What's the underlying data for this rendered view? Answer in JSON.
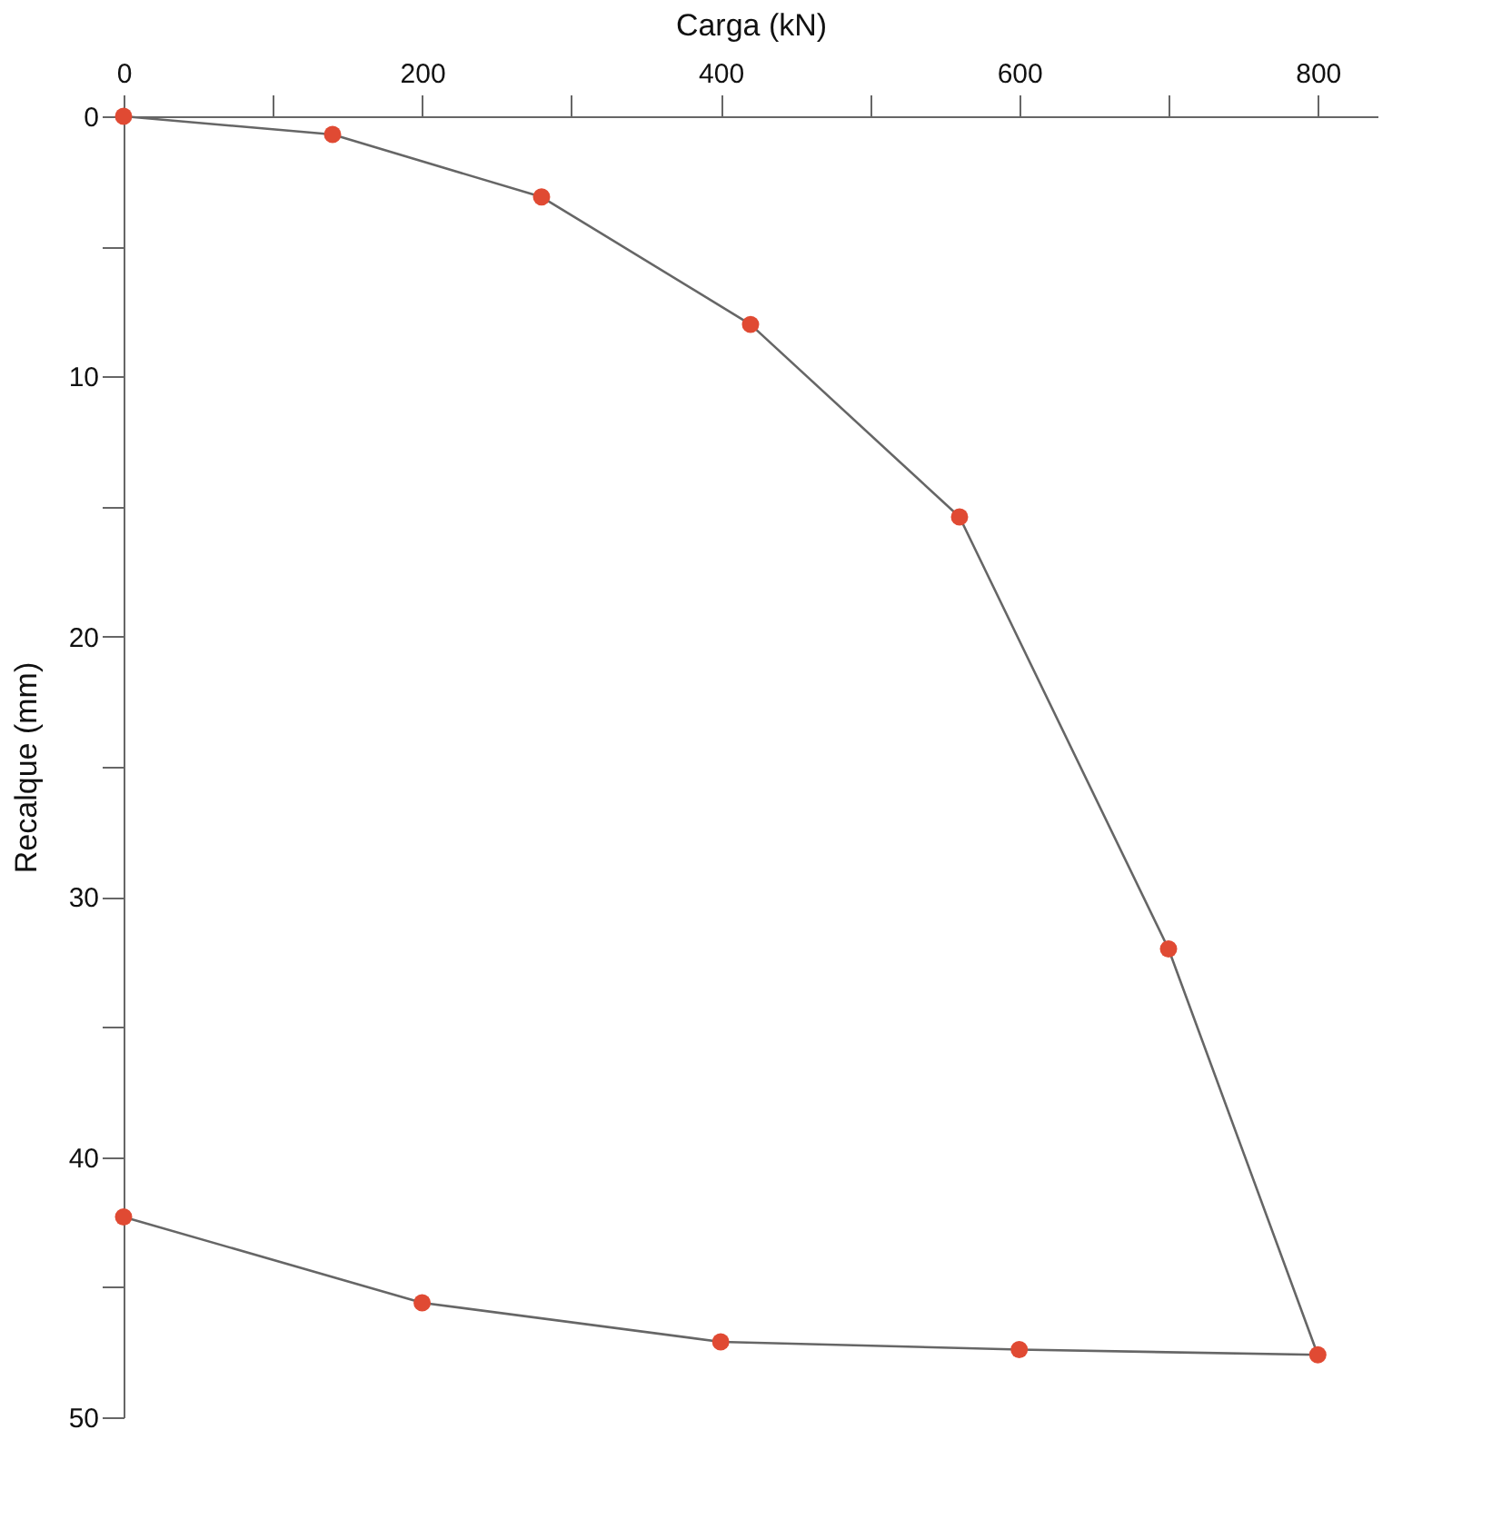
{
  "chart_data": {
    "type": "line",
    "xlabel": "Carga (kN)",
    "ylabel": "Recalque (mm)",
    "x": [
      0,
      140,
      280,
      420,
      560,
      700,
      800,
      600,
      400,
      200,
      0
    ],
    "series": [
      {
        "color": "#e04a33",
        "values": [
          0,
          0.7,
          3.1,
          8.0,
          15.4,
          32.0,
          47.6,
          47.4,
          47.1,
          45.6,
          42.3
        ]
      }
    ],
    "xlim": [
      0,
      840
    ],
    "ylim": [
      50,
      0
    ],
    "xticks": [
      0,
      {
        "value": 100,
        "label": null
      },
      200,
      {
        "value": 300,
        "label": null
      },
      400,
      {
        "value": 500,
        "label": null
      },
      600,
      {
        "value": 700,
        "label": null
      },
      800
    ],
    "yticks": [
      0,
      {
        "value": 5,
        "label": null
      },
      10,
      {
        "value": 15,
        "label": null
      },
      20,
      {
        "value": 25,
        "label": null
      },
      30,
      {
        "value": 35,
        "label": null
      },
      40,
      {
        "value": 45,
        "label": null
      },
      50
    ],
    "marker": "circle",
    "line_style": "solid",
    "grid": false
  }
}
